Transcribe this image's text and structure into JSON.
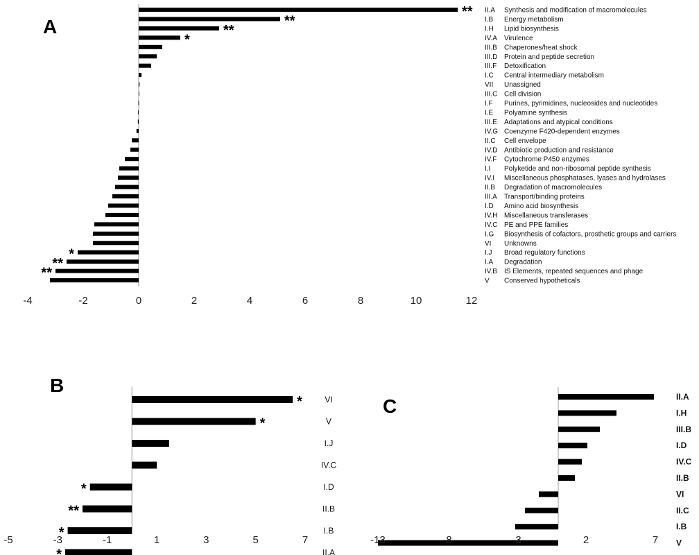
{
  "chart_data": [
    {
      "panel": "A",
      "type": "bar",
      "orientation": "horizontal",
      "xlim": [
        -4,
        12
      ],
      "xticks": [
        "-4",
        "-2",
        "0",
        "2",
        "4",
        "6",
        "8",
        "10",
        "12"
      ],
      "categories": [
        {
          "code": "II.A",
          "name": "Synthesis and modification of macromolecules",
          "value": 11.5,
          "sig": "**"
        },
        {
          "code": "I.B",
          "name": "Energy metabolism",
          "value": 5.1,
          "sig": "**"
        },
        {
          "code": "I.H",
          "name": "Lipid biosynthesis",
          "value": 2.9,
          "sig": "**"
        },
        {
          "code": "IV.A",
          "name": "Virulence",
          "value": 1.5,
          "sig": "*"
        },
        {
          "code": "III.B",
          "name": "Chaperones/heat shock",
          "value": 0.85,
          "sig": ""
        },
        {
          "code": "III.D",
          "name": "Protein and peptide secretion",
          "value": 0.65,
          "sig": ""
        },
        {
          "code": "III.F",
          "name": "Detoxification",
          "value": 0.45,
          "sig": ""
        },
        {
          "code": "I.C",
          "name": "Central intermediary metabolism",
          "value": 0.1,
          "sig": ""
        },
        {
          "code": "VII",
          "name": "Unassigned",
          "value": 0.03,
          "sig": ""
        },
        {
          "code": "III.C",
          "name": "Cell division",
          "value": 0.01,
          "sig": ""
        },
        {
          "code": "I.F",
          "name": "Purines, pyrimidines, nucleosides and nucleotides",
          "value": -0.01,
          "sig": ""
        },
        {
          "code": "I.E",
          "name": "Polyamine synthesis",
          "value": -0.02,
          "sig": ""
        },
        {
          "code": "III.E",
          "name": "Adaptations and atypical conditions",
          "value": -0.03,
          "sig": ""
        },
        {
          "code": "IV.G",
          "name": "Coenzyme F420-dependent enzymes",
          "value": -0.08,
          "sig": ""
        },
        {
          "code": "II.C",
          "name": "Cell envelope",
          "value": -0.25,
          "sig": ""
        },
        {
          "code": "IV.D",
          "name": "Antibiotic production and resistance",
          "value": -0.3,
          "sig": ""
        },
        {
          "code": "IV.F",
          "name": "Cytochrome P450 enzymes",
          "value": -0.5,
          "sig": ""
        },
        {
          "code": "I.I",
          "name": "Polyketide and non-ribosomal peptide synthesis",
          "value": -0.7,
          "sig": ""
        },
        {
          "code": "IV.I",
          "name": "Miscellaneous phosphatases, lyases and hydrolases",
          "value": -0.75,
          "sig": ""
        },
        {
          "code": "II.B",
          "name": "Degradation of macromolecules",
          "value": -0.85,
          "sig": ""
        },
        {
          "code": "III.A",
          "name": "Transport/binding proteins",
          "value": -0.95,
          "sig": ""
        },
        {
          "code": "I.D",
          "name": "Amino acid biosynthesis",
          "value": -1.1,
          "sig": ""
        },
        {
          "code": "IV.H",
          "name": "Miscellaneous transferases",
          "value": -1.2,
          "sig": ""
        },
        {
          "code": "IV.C",
          "name": "PE and PPE families",
          "value": -1.6,
          "sig": ""
        },
        {
          "code": "I.G",
          "name": "Biosynthesis of cofactors, prosthetic groups and carriers",
          "value": -1.65,
          "sig": ""
        },
        {
          "code": "VI",
          "name": "Unknowns",
          "value": -1.65,
          "sig": ""
        },
        {
          "code": "I.J",
          "name": "Broad regulatory functions",
          "value": -2.2,
          "sig": "*"
        },
        {
          "code": "I.A",
          "name": "Degradation",
          "value": -2.6,
          "sig": "**"
        },
        {
          "code": "IV.B",
          "name": "IS Elements, repeated sequences and phage",
          "value": -3.0,
          "sig": "**"
        },
        {
          "code": "V",
          "name": "Conserved hypotheticals",
          "value": -3.2,
          "sig": ""
        }
      ]
    },
    {
      "panel": "B",
      "type": "bar",
      "orientation": "horizontal",
      "xlim": [
        -5,
        7
      ],
      "xticks": [
        "-5",
        "-3",
        "-1",
        "1",
        "3",
        "5",
        "7"
      ],
      "categories": [
        {
          "code": "VI",
          "value": 6.5,
          "sig": "*"
        },
        {
          "code": "V",
          "value": 5.0,
          "sig": "*"
        },
        {
          "code": "I.J",
          "value": 1.5,
          "sig": ""
        },
        {
          "code": "IV.C",
          "value": 1.0,
          "sig": ""
        },
        {
          "code": "I.D",
          "value": -1.7,
          "sig": "*"
        },
        {
          "code": "II.B",
          "value": -2.0,
          "sig": "**"
        },
        {
          "code": "I.B",
          "value": -2.6,
          "sig": "*"
        },
        {
          "code": "II.A",
          "value": -2.7,
          "sig": "*"
        }
      ]
    },
    {
      "panel": "C",
      "type": "bar",
      "orientation": "horizontal",
      "xlim": [
        -13,
        7
      ],
      "xticks": [
        "-13",
        "-8",
        "-3",
        "2",
        "7"
      ],
      "categories": [
        {
          "code": "II.A",
          "value": 6.9,
          "sig": ""
        },
        {
          "code": "I.H",
          "value": 4.2,
          "sig": ""
        },
        {
          "code": "III.B",
          "value": 3.0,
          "sig": ""
        },
        {
          "code": "I.D",
          "value": 2.1,
          "sig": ""
        },
        {
          "code": "IV.C",
          "value": 1.7,
          "sig": ""
        },
        {
          "code": "II.B",
          "value": 1.2,
          "sig": ""
        },
        {
          "code": "VI",
          "value": -1.4,
          "sig": ""
        },
        {
          "code": "II.C",
          "value": -2.4,
          "sig": ""
        },
        {
          "code": "I.B",
          "value": -3.1,
          "sig": ""
        },
        {
          "code": "V",
          "value": -13.0,
          "sig": ""
        }
      ]
    }
  ]
}
